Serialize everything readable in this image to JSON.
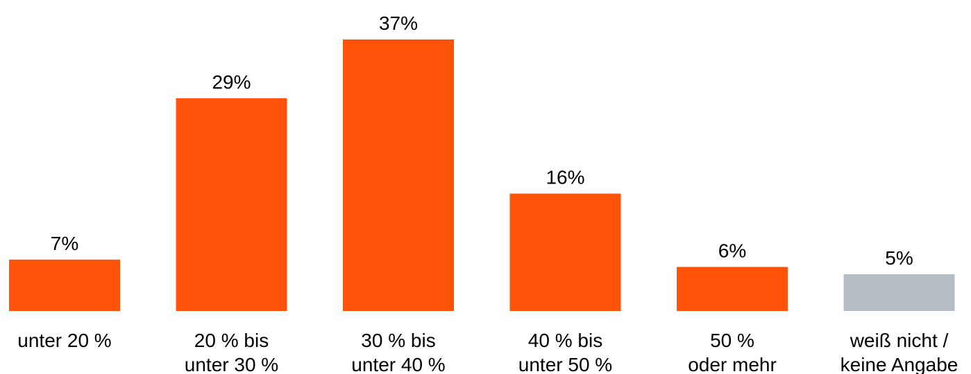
{
  "chart_data": {
    "type": "bar",
    "categories": [
      [
        "unter 20 %"
      ],
      [
        "20 % bis",
        "unter 30 %"
      ],
      [
        "30 % bis",
        "unter 40 %"
      ],
      [
        "40 % bis",
        "unter 50 %"
      ],
      [
        "50 %",
        "oder mehr"
      ],
      [
        "weiß nicht /",
        "keine Angabe"
      ]
    ],
    "values": [
      7,
      29,
      37,
      16,
      6,
      5
    ],
    "value_labels": [
      "7%",
      "29%",
      "37%",
      "16%",
      "6%",
      "5%"
    ],
    "unit": "%",
    "colors": [
      "#ff5309",
      "#ff5309",
      "#ff5309",
      "#ff5309",
      "#ff5309",
      "#b6bcc3"
    ],
    "ylim": [
      0,
      37
    ],
    "grid": false,
    "legend": "none"
  }
}
